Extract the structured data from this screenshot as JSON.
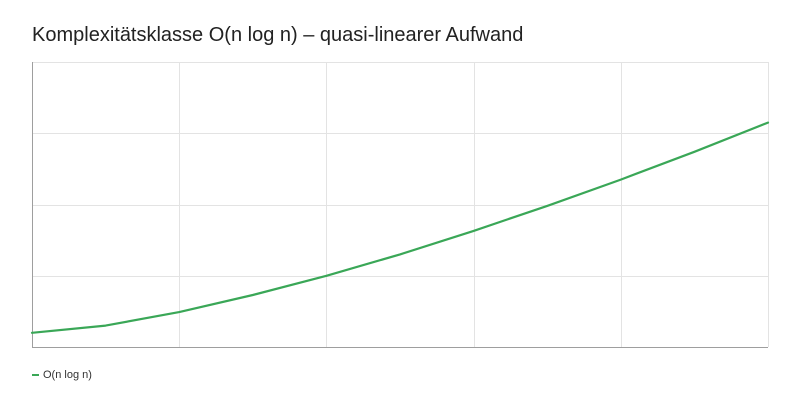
{
  "chart_data": {
    "type": "line",
    "title": "Komplexitätsklasse O(n log n) – quasi-linearer Aufwand",
    "xlabel": "",
    "ylabel": "",
    "x": [
      0,
      1,
      2,
      3,
      4,
      5,
      6,
      7,
      8,
      9,
      10
    ],
    "series": [
      {
        "name": "O(n log n)",
        "color": "#3aa757",
        "values": [
          0.2,
          0.3,
          0.49,
          0.73,
          1.0,
          1.3,
          1.63,
          1.98,
          2.35,
          2.74,
          3.15
        ]
      }
    ],
    "xlim": [
      0,
      10
    ],
    "ylim": [
      0,
      4
    ],
    "grid": true,
    "legend_position": "bottom-left",
    "tick_labels_shown": false
  }
}
